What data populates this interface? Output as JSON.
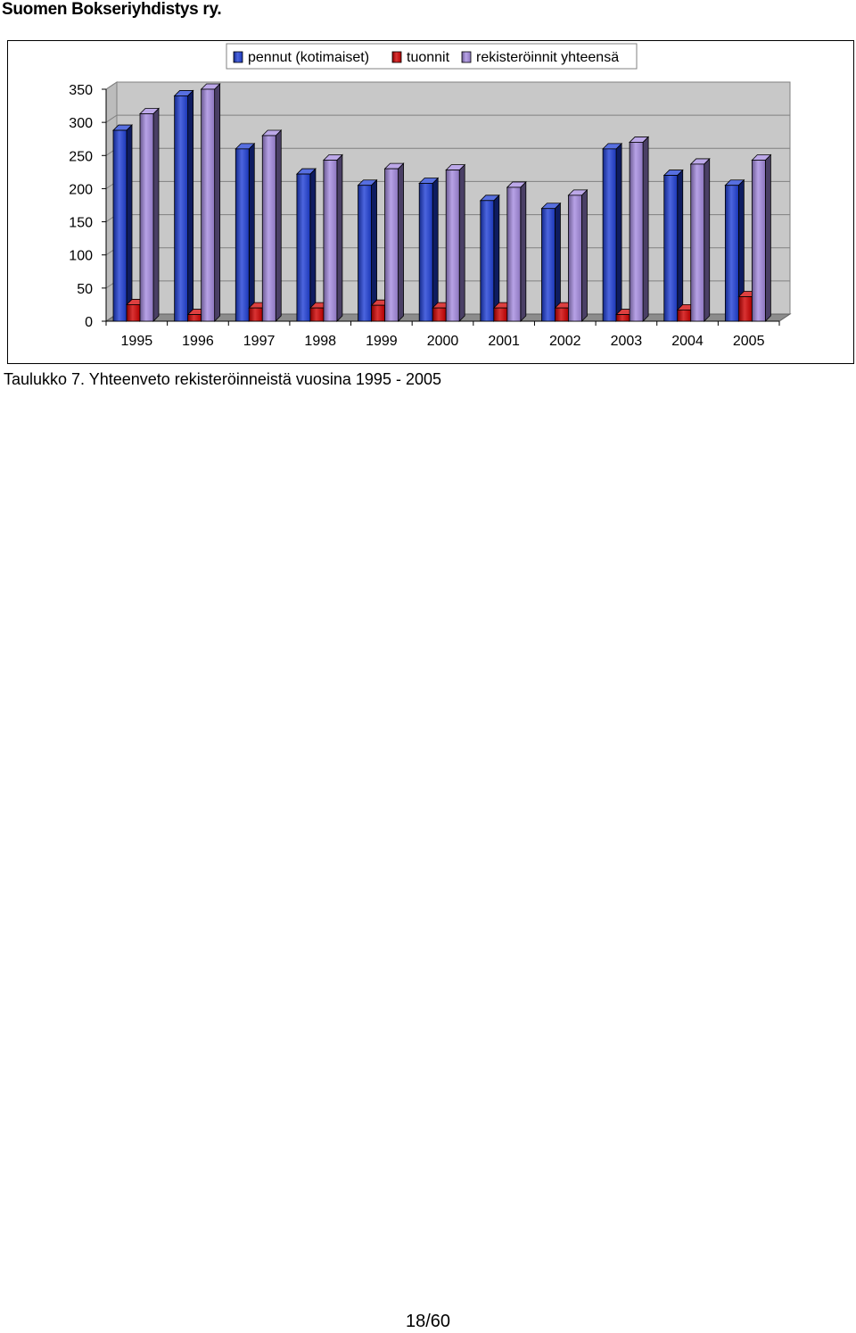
{
  "header": {
    "title": "Suomen Bokseriyhdistys ry."
  },
  "caption": "Taulukko 7. Yhteenveto rekisteröinneistä vuosina 1995 - 2005",
  "footer": {
    "page": "18/60"
  },
  "chart_data": {
    "type": "bar",
    "title": "",
    "xlabel": "",
    "ylabel": "",
    "ylim": [
      0,
      350
    ],
    "yticks": [
      "0",
      "50",
      "100",
      "150",
      "200",
      "250",
      "300",
      "350"
    ],
    "grid": true,
    "legend_position": "top",
    "categories": [
      "1995",
      "1996",
      "1997",
      "1998",
      "1999",
      "2000",
      "2001",
      "2002",
      "2003",
      "2004",
      "2005"
    ],
    "series": [
      {
        "name": "pennut (kotimaiset)",
        "color": "#1f3fd6",
        "values": [
          288,
          340,
          260,
          222,
          205,
          208,
          182,
          170,
          260,
          220,
          205
        ]
      },
      {
        "name": "tuonnit",
        "color": "#d00000",
        "values": [
          25,
          10,
          20,
          20,
          24,
          20,
          20,
          20,
          10,
          17,
          37
        ]
      },
      {
        "name": "rekisteröinnit yhteensä",
        "color": "#a58be0",
        "values": [
          313,
          350,
          280,
          243,
          230,
          228,
          202,
          190,
          270,
          237,
          243
        ]
      }
    ]
  }
}
